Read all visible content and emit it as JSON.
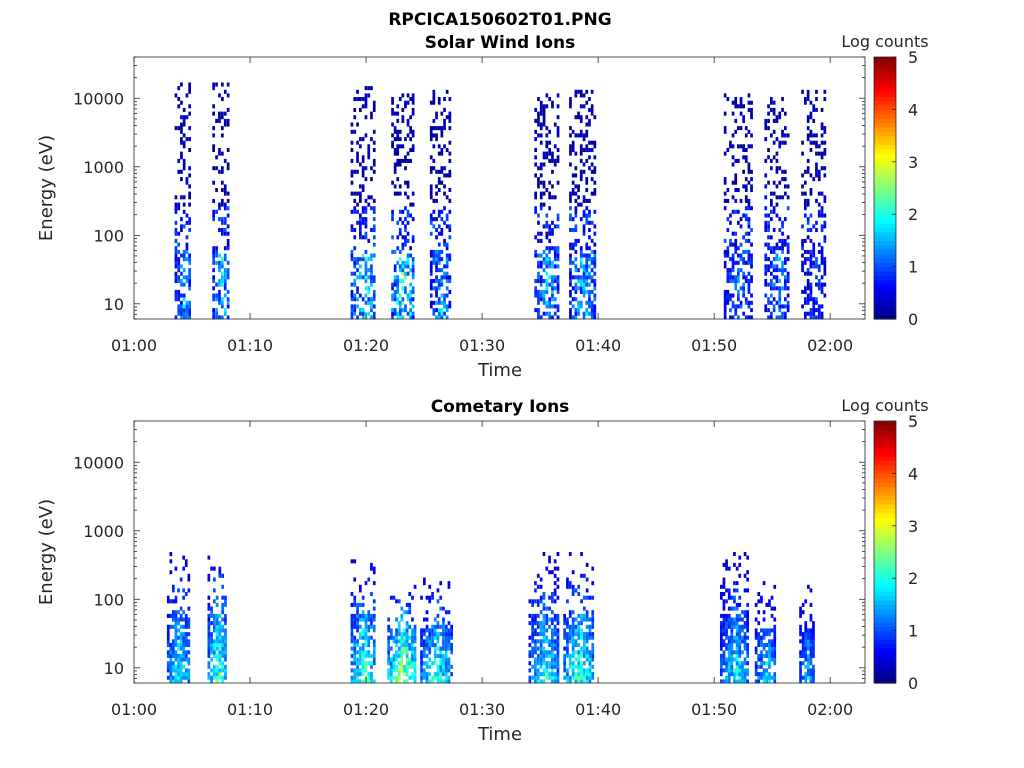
{
  "figure": {
    "title": "RPCICA150602T01.PNG"
  },
  "chart_data": [
    {
      "type": "heatmap",
      "title": "Solar Wind Ions",
      "xlabel": "Time",
      "ylabel": "Energy (eV)",
      "x_ticks": [
        "01:00",
        "01:10",
        "01:20",
        "01:30",
        "01:40",
        "01:50",
        "02:00"
      ],
      "xlim": [
        "01:00",
        "02:03"
      ],
      "yscale": "log",
      "ylim": [
        6,
        40000
      ],
      "y_ticks": [
        "10",
        "100",
        "1000",
        "10000"
      ],
      "colorbar": {
        "label": "Log counts",
        "range": [
          0,
          5
        ],
        "ticks": [
          "0",
          "1",
          "2",
          "3",
          "4",
          "5"
        ],
        "colormap": "jet"
      },
      "bursts": [
        {
          "t_start": "01:03:30",
          "t_end": "01:04:55",
          "e_max_eV": 15000,
          "peak_log_counts": 2.0
        },
        {
          "t_start": "01:06:45",
          "t_end": "01:08:15",
          "e_max_eV": 15000,
          "peak_log_counts": 2.2
        },
        {
          "t_start": "01:18:40",
          "t_end": "01:20:50",
          "e_max_eV": 15000,
          "peak_log_counts": 2.4
        },
        {
          "t_start": "01:22:10",
          "t_end": "01:24:10",
          "e_max_eV": 10000,
          "peak_log_counts": 2.8
        },
        {
          "t_start": "01:25:30",
          "t_end": "01:27:20",
          "e_max_eV": 12000,
          "peak_log_counts": 2.0
        },
        {
          "t_start": "01:34:30",
          "t_end": "01:36:40",
          "e_max_eV": 10000,
          "peak_log_counts": 2.0
        },
        {
          "t_start": "01:37:30",
          "t_end": "01:39:50",
          "e_max_eV": 12000,
          "peak_log_counts": 2.2
        },
        {
          "t_start": "01:50:50",
          "t_end": "01:53:20",
          "e_max_eV": 10000,
          "peak_log_counts": 1.6
        },
        {
          "t_start": "01:54:20",
          "t_end": "01:56:30",
          "e_max_eV": 9000,
          "peak_log_counts": 1.8
        },
        {
          "t_start": "01:57:30",
          "t_end": "01:59:40",
          "e_max_eV": 12000,
          "peak_log_counts": 1.2
        }
      ]
    },
    {
      "type": "heatmap",
      "title": "Cometary Ions",
      "xlabel": "Time",
      "ylabel": "Energy (eV)",
      "x_ticks": [
        "01:00",
        "01:10",
        "01:20",
        "01:30",
        "01:40",
        "01:50",
        "02:00"
      ],
      "xlim": [
        "01:00",
        "02:03"
      ],
      "yscale": "log",
      "ylim": [
        6,
        40000
      ],
      "y_ticks": [
        "10",
        "100",
        "1000",
        "10000"
      ],
      "colorbar": {
        "label": "Log counts",
        "range": [
          0,
          5
        ],
        "ticks": [
          "0",
          "1",
          "2",
          "3",
          "4",
          "5"
        ],
        "colormap": "jet"
      },
      "bursts": [
        {
          "t_start": "01:02:50",
          "t_end": "01:04:50",
          "e_max_eV": 400,
          "peak_log_counts": 2.6
        },
        {
          "t_start": "01:06:20",
          "t_end": "01:08:00",
          "e_max_eV": 500,
          "peak_log_counts": 3.0
        },
        {
          "t_start": "01:18:40",
          "t_end": "01:20:50",
          "e_max_eV": 350,
          "peak_log_counts": 3.0
        },
        {
          "t_start": "01:21:50",
          "t_end": "01:24:20",
          "e_max_eV": 150,
          "peak_log_counts": 3.6
        },
        {
          "t_start": "01:24:40",
          "t_end": "01:27:30",
          "e_max_eV": 200,
          "peak_log_counts": 2.8
        },
        {
          "t_start": "01:34:00",
          "t_end": "01:36:40",
          "e_max_eV": 400,
          "peak_log_counts": 2.6
        },
        {
          "t_start": "01:37:00",
          "t_end": "01:39:40",
          "e_max_eV": 400,
          "peak_log_counts": 2.9
        },
        {
          "t_start": "01:50:30",
          "t_end": "01:53:00",
          "e_max_eV": 400,
          "peak_log_counts": 2.4
        },
        {
          "t_start": "01:53:30",
          "t_end": "01:55:20",
          "e_max_eV": 150,
          "peak_log_counts": 2.3
        },
        {
          "t_start": "01:57:20",
          "t_end": "01:58:40",
          "e_max_eV": 150,
          "peak_log_counts": 2.1
        }
      ]
    }
  ]
}
